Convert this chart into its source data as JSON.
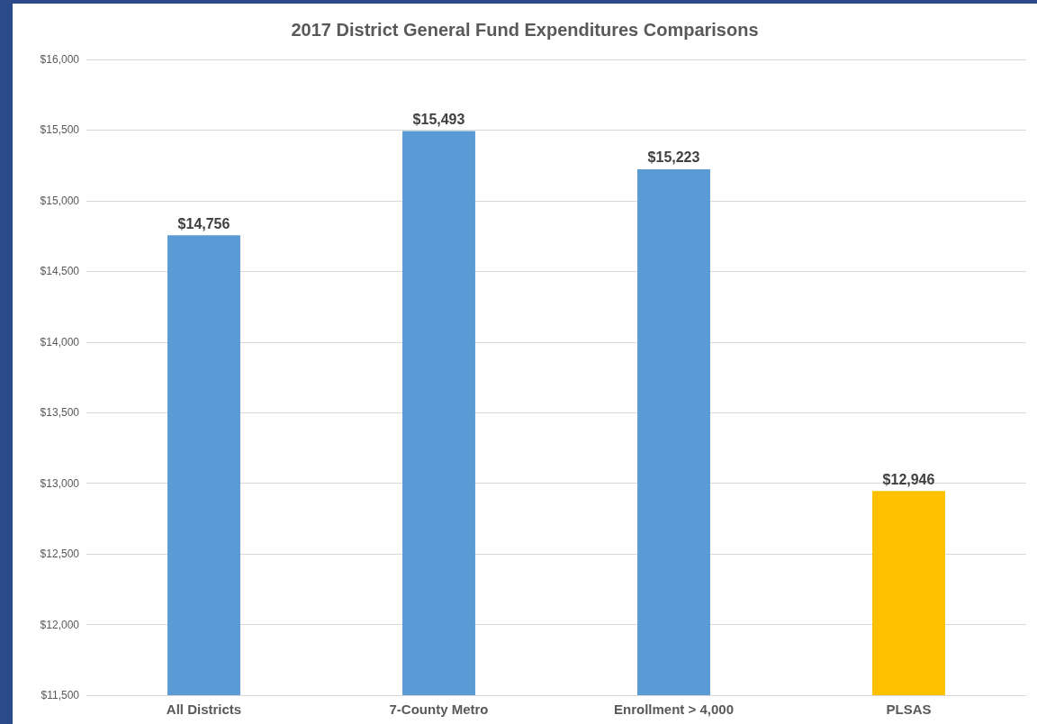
{
  "chart_data": {
    "type": "bar",
    "title": "2017 District General Fund Expenditures Comparisons",
    "categories": [
      "All Districts",
      "7-County Metro",
      "Enrollment > 4,000",
      "PLSAS"
    ],
    "values": [
      14756,
      15493,
      15223,
      12946
    ],
    "colors": [
      "#5b9bd5",
      "#5b9bd5",
      "#5b9bd5",
      "#ffc000"
    ],
    "value_labels": [
      "$14,756",
      "$15,493",
      "$15,223",
      "$12,946"
    ],
    "ylim": [
      11500,
      16000
    ],
    "yticks": [
      {
        "value": 11500,
        "label": "$11,500"
      },
      {
        "value": 12000,
        "label": "$12,000"
      },
      {
        "value": 12500,
        "label": "$12,500"
      },
      {
        "value": 13000,
        "label": "$13,000"
      },
      {
        "value": 13500,
        "label": "$13,500"
      },
      {
        "value": 14000,
        "label": "$14,000"
      },
      {
        "value": 14500,
        "label": "$14,500"
      },
      {
        "value": 15000,
        "label": "$15,000"
      },
      {
        "value": 15500,
        "label": "$15,500"
      },
      {
        "value": 16000,
        "label": "$16,000"
      }
    ],
    "grid": "y"
  }
}
